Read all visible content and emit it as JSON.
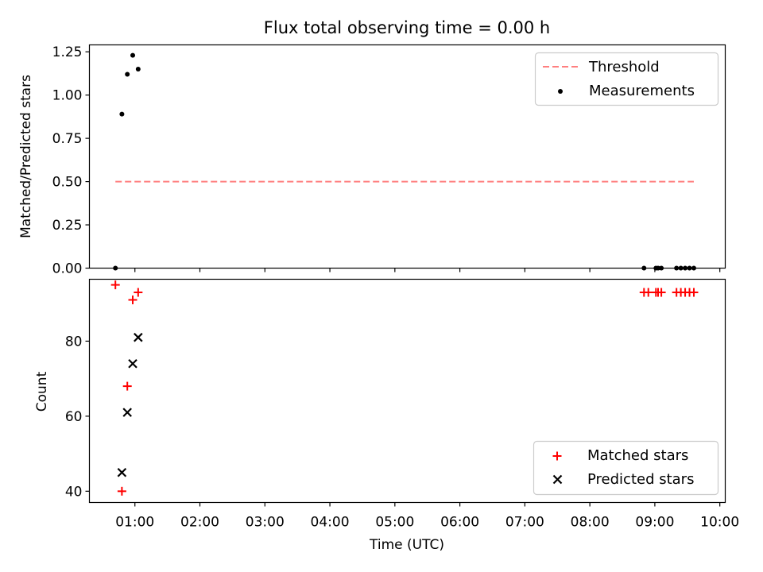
{
  "title": "Flux total observing time = 0.00 h",
  "colors": {
    "threshold": "#ff7f7f",
    "measurements": "#000000",
    "matched": "#ff0000",
    "predicted": "#000000",
    "axes": "#000000",
    "legend_border": "#cccccc"
  },
  "chart_data": [
    {
      "type": "scatter",
      "panel": "top",
      "title": "Flux total observing time = 0.00 h",
      "xlabel": "",
      "ylabel": "Matched/Predicted stars",
      "x_is_time": true,
      "xlim": [
        "00:18",
        "10:05"
      ],
      "ylim": [
        0.0,
        1.29
      ],
      "yticks": [
        0.0,
        0.25,
        0.5,
        0.75,
        1.0,
        1.25
      ],
      "ytick_labels": [
        "0.00",
        "0.25",
        "0.50",
        "0.75",
        "1.00",
        "1.25"
      ],
      "xticks": [
        "01:00",
        "02:00",
        "03:00",
        "04:00",
        "05:00",
        "06:00",
        "07:00",
        "08:00",
        "09:00",
        "10:00"
      ],
      "legend": {
        "placement": "upper right",
        "entries": [
          {
            "label": "Threshold",
            "marker": "dashed-line"
          },
          {
            "label": "Measurements",
            "marker": "dot"
          }
        ]
      },
      "series": [
        {
          "name": "Threshold",
          "kind": "line",
          "style": "dashed",
          "color": "#ff7f7f",
          "x": [
            "00:42",
            "09:36"
          ],
          "y": [
            0.5,
            0.5
          ]
        },
        {
          "name": "Measurements",
          "kind": "scatter",
          "marker": "dot",
          "color": "#000000",
          "x": [
            "00:42",
            "00:48",
            "00:53",
            "00:58",
            "01:03",
            "08:50",
            "09:01",
            "09:03",
            "09:06",
            "09:20",
            "09:24",
            "09:28",
            "09:32",
            "09:36"
          ],
          "y": [
            0.0,
            0.89,
            1.12,
            1.23,
            1.15,
            0.0,
            0.0,
            0.0,
            0.0,
            0.0,
            0.0,
            0.0,
            0.0,
            0.0
          ]
        }
      ]
    },
    {
      "type": "scatter",
      "panel": "bottom",
      "title": "",
      "xlabel": "Time (UTC)",
      "ylabel": "Count",
      "x_is_time": true,
      "xlim": [
        "00:18",
        "10:05"
      ],
      "ylim": [
        37,
        96.5
      ],
      "yticks": [
        40,
        60,
        80
      ],
      "ytick_labels": [
        "40",
        "60",
        "80"
      ],
      "xticks": [
        "01:00",
        "02:00",
        "03:00",
        "04:00",
        "05:00",
        "06:00",
        "07:00",
        "08:00",
        "09:00",
        "10:00"
      ],
      "legend": {
        "placement": "lower right",
        "entries": [
          {
            "label": "Matched stars",
            "marker": "plus"
          },
          {
            "label": "Predicted stars",
            "marker": "x"
          }
        ]
      },
      "series": [
        {
          "name": "Matched stars",
          "kind": "scatter",
          "marker": "plus",
          "color": "#ff0000",
          "x": [
            "00:42",
            "00:48",
            "00:53",
            "00:58",
            "01:03",
            "08:50",
            "08:54",
            "09:01",
            "09:03",
            "09:06",
            "09:20",
            "09:24",
            "09:28",
            "09:32",
            "09:36"
          ],
          "y": [
            95,
            40,
            68,
            91,
            93,
            93,
            93,
            93,
            93,
            93,
            93,
            93,
            93,
            93,
            93
          ]
        },
        {
          "name": "Predicted stars",
          "kind": "scatter",
          "marker": "x",
          "color": "#000000",
          "x": [
            "00:48",
            "00:53",
            "00:58",
            "01:03"
          ],
          "y": [
            45,
            61,
            74,
            81
          ]
        }
      ]
    }
  ]
}
